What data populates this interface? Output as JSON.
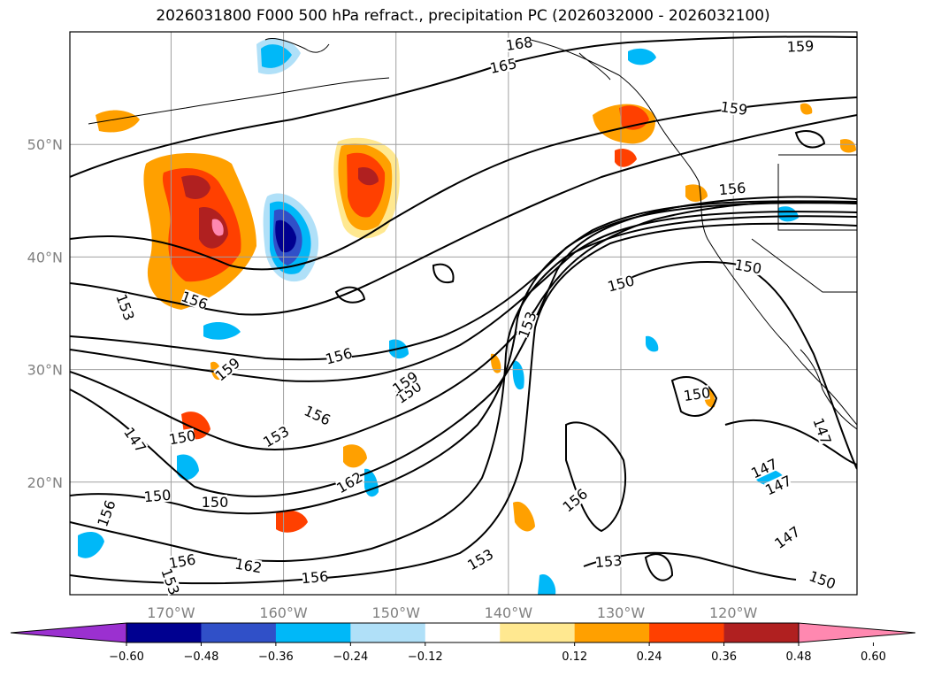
{
  "title": "2026031800 F000 500 hPa refract., precipitation PC (2026032000 - 2026032100)",
  "chart_data": {
    "type": "map-contour",
    "title": "2026031800 F000 500 hPa refract., precipitation PC (2026032000 - 2026032100)",
    "lon_ticks": [
      "170°W",
      "160°W",
      "150°W",
      "140°W",
      "130°W",
      "120°W"
    ],
    "lat_ticks": [
      "50°N",
      "40°N",
      "30°N",
      "20°N"
    ],
    "lon_range": [
      -179,
      -109
    ],
    "lat_range": [
      10,
      60
    ],
    "grid": true,
    "contour_field": "500 hPa refractivity",
    "contour_labels": [
      "168",
      "165",
      "159",
      "159",
      "156",
      "156",
      "156",
      "153",
      "153",
      "150",
      "150",
      "150",
      "147",
      "147",
      "147",
      "147",
      "159",
      "156",
      "150",
      "153",
      "159",
      "162",
      "156",
      "153",
      "150",
      "156",
      "162",
      "156",
      "153",
      "156",
      "150",
      "153",
      "147",
      "150",
      "150"
    ],
    "colorbar": {
      "ticks": [
        "−0.60",
        "−0.48",
        "−0.36",
        "−0.24",
        "−0.12",
        "0.12",
        "0.24",
        "0.36",
        "0.48",
        "0.60"
      ],
      "colors": [
        "#9b30d0",
        "#000090",
        "#3050c8",
        "#00b8f8",
        "#b0e0f8",
        "#ffffff",
        "#ffe890",
        "#ffa000",
        "#ff4000",
        "#b02020",
        "#ff88b0"
      ],
      "extend": "both"
    }
  }
}
